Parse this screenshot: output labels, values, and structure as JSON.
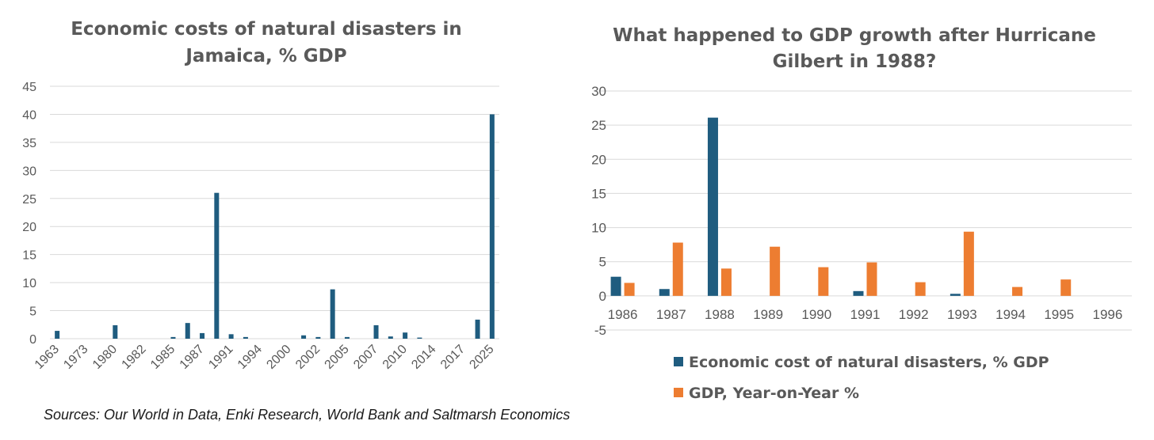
{
  "colors": {
    "blue": "#1f5c7f",
    "orange": "#ed7d31",
    "grid": "#d9d9d9",
    "text": "#595959"
  },
  "sources": "Sources: Our World in Data, Enki Research, World Bank  and Saltmarsh Economics",
  "chart_data": [
    {
      "type": "bar",
      "title_lines": [
        "Economic costs of natural disasters in",
        "Jamaica, % GDP"
      ],
      "xlabel": "",
      "ylabel": "",
      "ylim": [
        0,
        45
      ],
      "yticks": [
        0,
        5,
        10,
        15,
        20,
        25,
        30,
        35,
        40,
        45
      ],
      "x_tick_labels": [
        "1963",
        "1973",
        "1980",
        "1982",
        "1985",
        "1987",
        "1991",
        "1994",
        "2000",
        "2002",
        "2005",
        "2007",
        "2010",
        "2014",
        "2017",
        "2025"
      ],
      "tick_positions": [
        0,
        2,
        4,
        6,
        8,
        10,
        12,
        14,
        16,
        18,
        20,
        22,
        24,
        26,
        28,
        30
      ],
      "n_categories": 31,
      "series": [
        {
          "name": "Economic cost of natural disasters, % GDP",
          "values": [
            1.4,
            0,
            0,
            0,
            2.4,
            0,
            0,
            0,
            0.3,
            2.8,
            1.0,
            26.0,
            0.8,
            0.3,
            0,
            0,
            0,
            0.6,
            0.3,
            8.8,
            0.3,
            0,
            2.4,
            0.4,
            1.1,
            0.2,
            0,
            0,
            0,
            3.4,
            40.0
          ]
        }
      ]
    },
    {
      "type": "bar",
      "title_lines": [
        "What happened to GDP growth after Hurricane",
        "Gilbert in 1988?"
      ],
      "xlabel": "",
      "ylabel": "",
      "ylim": [
        -5,
        30
      ],
      "yticks": [
        -5,
        0,
        5,
        10,
        15,
        20,
        25,
        30
      ],
      "categories": [
        "1986",
        "1987",
        "1988",
        "1989",
        "1990",
        "1991",
        "1992",
        "1993",
        "1994",
        "1995",
        "1996"
      ],
      "series": [
        {
          "name": "Economic cost of natural disasters, % GDP",
          "values": [
            2.8,
            1.0,
            26.1,
            0,
            0,
            0.7,
            0,
            0.3,
            0,
            0,
            0
          ]
        },
        {
          "name": "GDP, Year-on-Year %",
          "values": [
            1.9,
            7.8,
            4.0,
            7.2,
            4.2,
            4.9,
            2.0,
            9.4,
            1.3,
            2.4,
            0
          ]
        }
      ],
      "legend_position": "bottom"
    }
  ]
}
